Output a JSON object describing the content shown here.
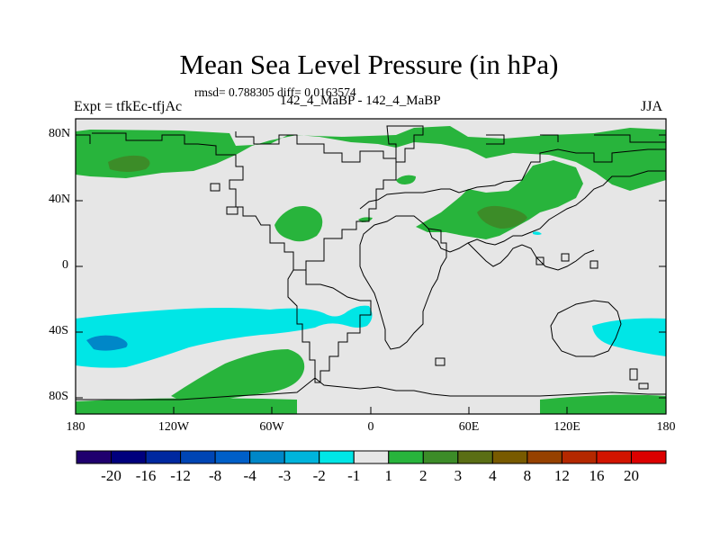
{
  "header": {
    "title": "Mean Sea Level Pressure (in hPa)",
    "stats": "rmsd= 0.788305 diff= 0.0163574",
    "experiment": "Expt = tfkEc-tfjAc",
    "cases": "142_4_MaBP - 142_4_MaBP",
    "season": "JJA"
  },
  "map": {
    "lat_range": [
      -90,
      90
    ],
    "lon_range": [
      -180,
      180
    ],
    "lat_ticks": [
      "80N",
      "40N",
      "0",
      "40S",
      "80S"
    ],
    "lon_ticks": [
      "180",
      "120W",
      "60W",
      "0",
      "60E",
      "120E",
      "180"
    ],
    "background_color": "#e6e6e6",
    "coastline_color": "#000000"
  },
  "colorbar": {
    "labels": [
      "-20",
      "-16",
      "-12",
      "-8",
      "-4",
      "-3",
      "-2",
      "-1",
      "1",
      "2",
      "3",
      "4",
      "8",
      "12",
      "16",
      "20"
    ],
    "colors": [
      "#1f006e",
      "#00007d",
      "#0028a0",
      "#0045b4",
      "#005fc8",
      "#0087c8",
      "#00b4dc",
      "#00e6e6",
      "#e6e6e6",
      "#28b43c",
      "#3c8c28",
      "#5a6e14",
      "#785a00",
      "#964100",
      "#b42800",
      "#d21400",
      "#dc0000"
    ]
  }
}
